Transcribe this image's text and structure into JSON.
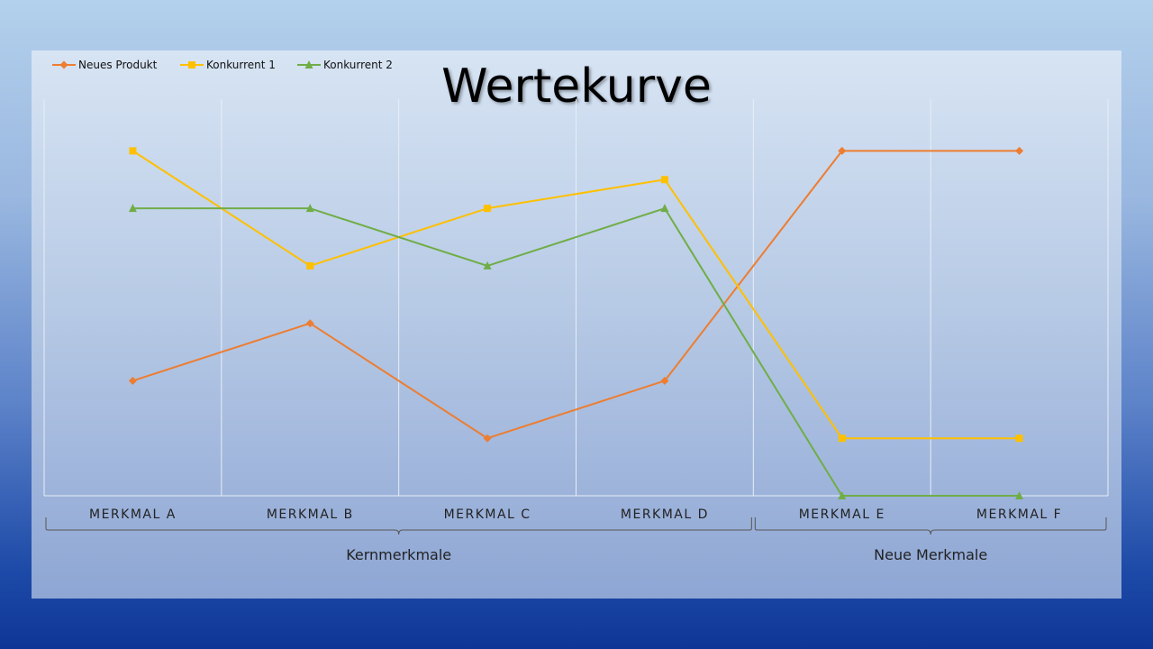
{
  "chart_data": {
    "type": "line",
    "title": "Wertekurve",
    "categories": [
      "MERKMAL A",
      "MERKMAL B",
      "MERKMAL C",
      "MERKMAL D",
      "MERKMAL E",
      "MERKMAL F"
    ],
    "category_groups": [
      {
        "label": "Kernmerkmale",
        "from": 0,
        "to": 3
      },
      {
        "label": "Neue Merkmale",
        "from": 4,
        "to": 5
      }
    ],
    "series": [
      {
        "name": "Neues Produkt",
        "color": "#ed7d31",
        "marker": "diamond",
        "values": [
          2,
          3,
          1,
          2,
          6,
          6
        ]
      },
      {
        "name": "Konkurrent 1",
        "color": "#ffc000",
        "marker": "square",
        "values": [
          6,
          4,
          5,
          5.5,
          1,
          1
        ]
      },
      {
        "name": "Konkurrent 2",
        "color": "#70ad47",
        "marker": "triangle",
        "values": [
          5,
          5,
          4,
          5,
          0,
          0
        ]
      }
    ],
    "ylim": [
      0,
      6.9
    ],
    "y_axis_visible": false,
    "grid": "vertical",
    "legend": "top-left"
  }
}
